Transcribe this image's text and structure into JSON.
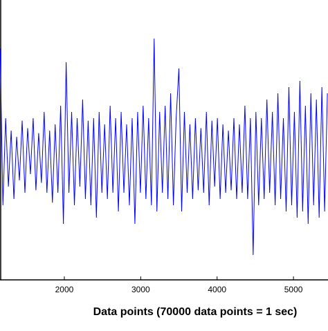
{
  "chart_data": {
    "type": "line",
    "x_label": "Data points (70000 data points = 1 sec)",
    "xlim": [
      1158,
      5452
    ],
    "xticks": [
      2000,
      3000,
      4000,
      5000
    ],
    "ylim": [
      -1,
      1
    ],
    "series": [
      {
        "color": "#0000ff",
        "x": [
          1160,
          1196,
          1232,
          1268,
          1304,
          1340,
          1376,
          1412,
          1448,
          1484,
          1520,
          1556,
          1592,
          1628,
          1664,
          1700,
          1736,
          1772,
          1808,
          1844,
          1880,
          1916,
          1952,
          1988,
          2024,
          2060,
          2096,
          2132,
          2168,
          2204,
          2240,
          2276,
          2312,
          2348,
          2384,
          2420,
          2456,
          2492,
          2528,
          2564,
          2600,
          2636,
          2672,
          2708,
          2744,
          2780,
          2816,
          2852,
          2888,
          2924,
          2960,
          2996,
          3032,
          3068,
          3104,
          3140,
          3176,
          3212,
          3248,
          3284,
          3320,
          3356,
          3392,
          3428,
          3464,
          3500,
          3536,
          3572,
          3608,
          3644,
          3680,
          3716,
          3752,
          3788,
          3824,
          3860,
          3896,
          3932,
          3968,
          4004,
          4040,
          4076,
          4112,
          4148,
          4184,
          4220,
          4256,
          4292,
          4328,
          4364,
          4400,
          4436,
          4472,
          4508,
          4544,
          4580,
          4616,
          4652,
          4688,
          4724,
          4760,
          4796,
          4832,
          4868,
          4904,
          4940,
          4976,
          5012,
          5048,
          5084,
          5120,
          5156,
          5192,
          5228,
          5264,
          5300,
          5336,
          5372,
          5408,
          5444
        ],
        "values": [
          0.86,
          -0.4,
          0.3,
          -0.25,
          0.2,
          -0.35,
          0.15,
          -0.2,
          0.28,
          -0.3,
          0.22,
          -0.15,
          0.3,
          -0.28,
          0.18,
          -0.22,
          0.35,
          -0.3,
          0.2,
          -0.38,
          0.25,
          -0.3,
          0.4,
          -0.55,
          0.75,
          -0.3,
          0.35,
          -0.4,
          0.3,
          -0.25,
          0.45,
          -0.35,
          0.28,
          -0.4,
          0.3,
          -0.5,
          0.35,
          -0.3,
          0.25,
          -0.35,
          0.4,
          -0.3,
          0.3,
          -0.45,
          0.35,
          -0.3,
          0.25,
          -0.4,
          0.3,
          -0.55,
          0.35,
          -0.3,
          0.4,
          -0.35,
          0.3,
          -0.4,
          0.94,
          -0.45,
          0.35,
          -0.3,
          0.4,
          -0.35,
          0.5,
          -0.4,
          0.3,
          0.7,
          -0.45,
          0.35,
          -0.3,
          0.25,
          -0.35,
          0.3,
          -0.28,
          0.22,
          -0.3,
          0.35,
          -0.4,
          0.28,
          -0.25,
          0.3,
          -0.35,
          0.25,
          -0.3,
          0.2,
          -0.28,
          0.3,
          -0.35,
          0.25,
          -0.3,
          0.4,
          -0.35,
          0.3,
          -0.8,
          0.35,
          -0.4,
          0.3,
          -0.35,
          0.45,
          -0.3,
          0.35,
          -0.4,
          0.5,
          -0.35,
          0.3,
          -0.45,
          0.55,
          -0.4,
          0.35,
          -0.5,
          0.6,
          -0.45,
          0.4,
          -0.55,
          0.5,
          -0.4,
          0.45,
          -0.5,
          0.55,
          -0.45,
          0.5
        ]
      }
    ]
  }
}
